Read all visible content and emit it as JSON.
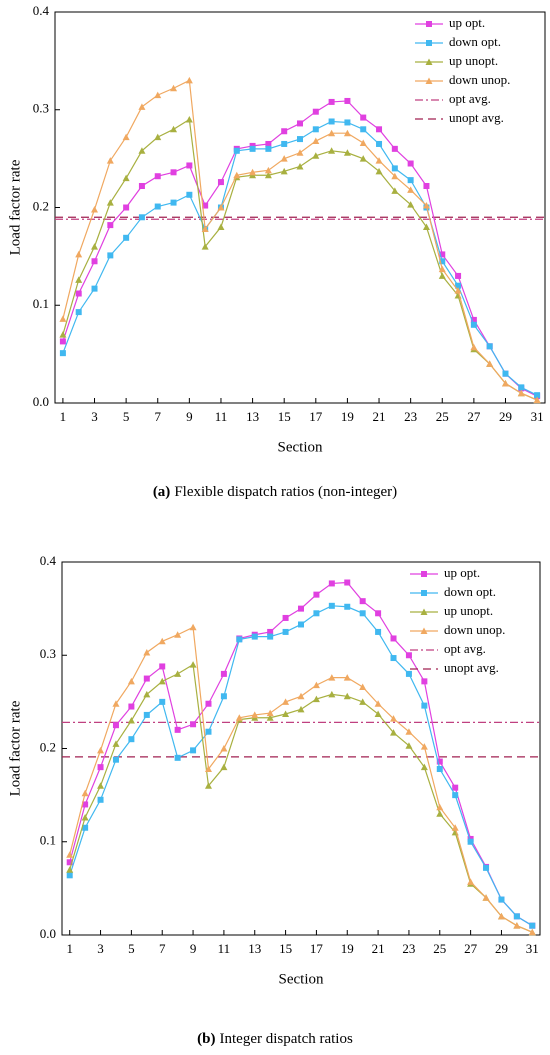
{
  "chart_data": [
    {
      "type": "line",
      "y_label": "Load factor rate",
      "x_label": "Section",
      "caption_label": "(a)",
      "caption": "Flexible dispatch ratios (non-integer)",
      "legend": "upper right",
      "x": [
        1,
        2,
        3,
        4,
        5,
        6,
        7,
        8,
        9,
        10,
        11,
        12,
        13,
        14,
        15,
        16,
        17,
        18,
        19,
        20,
        21,
        22,
        23,
        24,
        25,
        26,
        27,
        28,
        29,
        30,
        31
      ],
      "xlim": [
        0.5,
        31.5
      ],
      "xticks": [
        1,
        3,
        5,
        7,
        9,
        11,
        13,
        15,
        17,
        19,
        21,
        23,
        25,
        27,
        29,
        31
      ],
      "ylim": [
        0,
        0.4
      ],
      "yticks": [
        {
          "value": 0,
          "label": "0.0"
        },
        0.1,
        0.2,
        0.3,
        0.4
      ],
      "series": [
        {
          "name": "up opt.",
          "color": "#e040e0",
          "marker": "square",
          "values": [
            0.063,
            0.112,
            0.145,
            0.182,
            0.2,
            0.222,
            0.232,
            0.236,
            0.243,
            0.202,
            0.226,
            0.26,
            0.263,
            0.265,
            0.278,
            0.286,
            0.298,
            0.308,
            0.309,
            0.292,
            0.28,
            0.26,
            0.245,
            0.222,
            0.152,
            0.13,
            0.085,
            0.058,
            0.03,
            0.015,
            0.007
          ]
        },
        {
          "name": "down opt.",
          "color": "#40b8f0",
          "marker": "square",
          "values": [
            0.051,
            0.093,
            0.117,
            0.151,
            0.169,
            0.19,
            0.201,
            0.205,
            0.213,
            0.178,
            0.2,
            0.258,
            0.26,
            0.26,
            0.265,
            0.27,
            0.28,
            0.288,
            0.287,
            0.28,
            0.265,
            0.24,
            0.228,
            0.2,
            0.145,
            0.12,
            0.08,
            0.058,
            0.03,
            0.016,
            0.008
          ]
        },
        {
          "name": "up unopt.",
          "color": "#a8b040",
          "marker": "triangle",
          "values": [
            0.07,
            0.126,
            0.16,
            0.205,
            0.23,
            0.258,
            0.272,
            0.28,
            0.29,
            0.16,
            0.18,
            0.231,
            0.233,
            0.233,
            0.237,
            0.242,
            0.253,
            0.258,
            0.256,
            0.25,
            0.237,
            0.217,
            0.203,
            0.18,
            0.13,
            0.11,
            0.055,
            0.04,
            0.02,
            0.01,
            0.003
          ]
        },
        {
          "name": "down unop.",
          "color": "#f0a860",
          "marker": "triangle",
          "values": [
            0.086,
            0.152,
            0.198,
            0.248,
            0.272,
            0.303,
            0.315,
            0.322,
            0.33,
            0.178,
            0.2,
            0.233,
            0.236,
            0.238,
            0.25,
            0.256,
            0.268,
            0.276,
            0.276,
            0.266,
            0.248,
            0.232,
            0.218,
            0.202,
            0.137,
            0.115,
            0.057,
            0.04,
            0.02,
            0.01,
            0.003
          ]
        }
      ],
      "reference_lines": [
        {
          "name": "opt avg.",
          "color": "#c04080",
          "style": "dashdot",
          "value": 0.188
        },
        {
          "name": "unopt avg.",
          "color": "#a02050",
          "style": "dashed",
          "value": 0.19
        }
      ]
    },
    {
      "type": "line",
      "y_label": "Load factor rate",
      "x_label": "Section",
      "caption_label": "(b)",
      "caption": "Integer dispatch ratios",
      "legend": "upper right",
      "x": [
        1,
        2,
        3,
        4,
        5,
        6,
        7,
        8,
        9,
        10,
        11,
        12,
        13,
        14,
        15,
        16,
        17,
        18,
        19,
        20,
        21,
        22,
        23,
        24,
        25,
        26,
        27,
        28,
        29,
        30,
        31
      ],
      "xlim": [
        0.5,
        31.5
      ],
      "xticks": [
        1,
        3,
        5,
        7,
        9,
        11,
        13,
        15,
        17,
        19,
        21,
        23,
        25,
        27,
        29,
        31
      ],
      "ylim": [
        0,
        0.4
      ],
      "yticks": [
        {
          "value": 0,
          "label": "0.0"
        },
        0.1,
        0.2,
        0.3,
        0.4
      ],
      "series": [
        {
          "name": "up opt.",
          "color": "#e040e0",
          "marker": "square",
          "values": [
            0.078,
            0.14,
            0.18,
            0.225,
            0.245,
            0.275,
            0.288,
            0.22,
            0.226,
            0.248,
            0.28,
            0.318,
            0.322,
            0.325,
            0.34,
            0.35,
            0.365,
            0.377,
            0.378,
            0.358,
            0.345,
            0.318,
            0.3,
            0.272,
            0.186,
            0.158,
            0.103,
            0.073,
            0.038,
            0.02,
            0.01
          ]
        },
        {
          "name": "down opt.",
          "color": "#40b8f0",
          "marker": "square",
          "values": [
            0.064,
            0.115,
            0.145,
            0.188,
            0.21,
            0.236,
            0.25,
            0.19,
            0.198,
            0.218,
            0.256,
            0.317,
            0.32,
            0.32,
            0.325,
            0.333,
            0.345,
            0.353,
            0.352,
            0.345,
            0.325,
            0.297,
            0.28,
            0.246,
            0.178,
            0.15,
            0.1,
            0.072,
            0.038,
            0.02,
            0.01
          ]
        },
        {
          "name": "up unopt.",
          "color": "#a8b040",
          "marker": "triangle",
          "values": [
            0.07,
            0.126,
            0.16,
            0.205,
            0.23,
            0.258,
            0.272,
            0.28,
            0.29,
            0.16,
            0.18,
            0.231,
            0.233,
            0.233,
            0.237,
            0.242,
            0.253,
            0.258,
            0.256,
            0.25,
            0.237,
            0.217,
            0.203,
            0.18,
            0.13,
            0.11,
            0.055,
            0.04,
            0.02,
            0.01,
            0.003
          ]
        },
        {
          "name": "down unop.",
          "color": "#f0a860",
          "marker": "triangle",
          "values": [
            0.086,
            0.152,
            0.198,
            0.248,
            0.272,
            0.303,
            0.315,
            0.322,
            0.33,
            0.178,
            0.2,
            0.233,
            0.236,
            0.238,
            0.25,
            0.256,
            0.268,
            0.276,
            0.276,
            0.266,
            0.248,
            0.232,
            0.218,
            0.202,
            0.137,
            0.115,
            0.057,
            0.04,
            0.02,
            0.01,
            0.003
          ]
        }
      ],
      "reference_lines": [
        {
          "name": "opt avg.",
          "color": "#c04080",
          "style": "dashdot",
          "value": 0.228
        },
        {
          "name": "unopt avg.",
          "color": "#a02050",
          "style": "dashed",
          "value": 0.191
        }
      ]
    }
  ]
}
